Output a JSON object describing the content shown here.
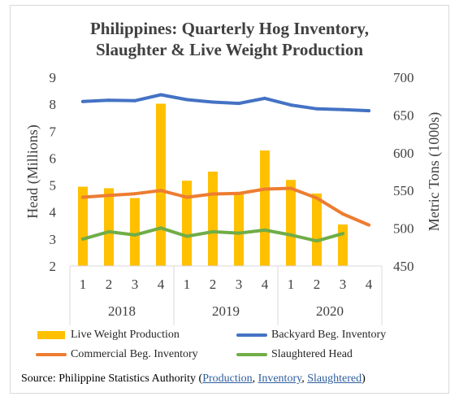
{
  "title_lines": [
    "Philippines:  Quarterly Hog Inventory,",
    "Slaughter & Live Weight Production"
  ],
  "source": {
    "prefix": "Source:  Philippine Statistics Authority (",
    "links": [
      "Production",
      "Inventory",
      "Slaughtered"
    ],
    "separator": ", ",
    "suffix": ")",
    "link_color": "#2e5e9e"
  },
  "chart_data": {
    "type": "bar",
    "title": "Philippines:  Quarterly Hog Inventory, Slaughter & Live Weight Production",
    "categories": [
      "1",
      "2",
      "3",
      "4",
      "1",
      "2",
      "3",
      "4",
      "1",
      "2",
      "3",
      "4"
    ],
    "groups": [
      {
        "label": "2018",
        "span": 4
      },
      {
        "label": "2019",
        "span": 4
      },
      {
        "label": "2020",
        "span": 4
      }
    ],
    "ylabel": "Head (Millions)",
    "y2label": "Metric Tons (1000s)",
    "ylim": [
      2,
      9
    ],
    "y2lim": [
      450,
      700
    ],
    "yticks": [
      "2",
      "3",
      "4",
      "5",
      "6",
      "7",
      "8",
      "9"
    ],
    "y2ticks": [
      "450",
      "500",
      "550",
      "600",
      "650",
      "700"
    ],
    "grid": false,
    "legend_position": "bottom",
    "series": [
      {
        "name": "Live Weight Production",
        "type": "bar",
        "axis": "right",
        "color": "#ffc000",
        "values": [
          555,
          553,
          540,
          665,
          563,
          575,
          548,
          603,
          564,
          546,
          505,
          null
        ]
      },
      {
        "name": "Backyard Beg. Inventory",
        "type": "line",
        "axis": "left",
        "color": "#4472c4",
        "values": [
          8.1,
          8.15,
          8.13,
          8.35,
          8.17,
          8.08,
          8.03,
          8.22,
          7.97,
          7.83,
          7.8,
          7.76
        ]
      },
      {
        "name": "Commercial Beg. Inventory",
        "type": "line",
        "axis": "left",
        "color": "#ed7d31",
        "values": [
          4.55,
          4.62,
          4.68,
          4.8,
          4.55,
          4.67,
          4.69,
          4.85,
          4.88,
          4.52,
          3.93,
          3.52
        ]
      },
      {
        "name": "Slaughtered Head",
        "type": "line",
        "axis": "left",
        "color": "#70ad47",
        "values": [
          3.0,
          3.27,
          3.15,
          3.41,
          3.1,
          3.27,
          3.22,
          3.33,
          3.15,
          2.93,
          3.2,
          null
        ]
      }
    ]
  }
}
